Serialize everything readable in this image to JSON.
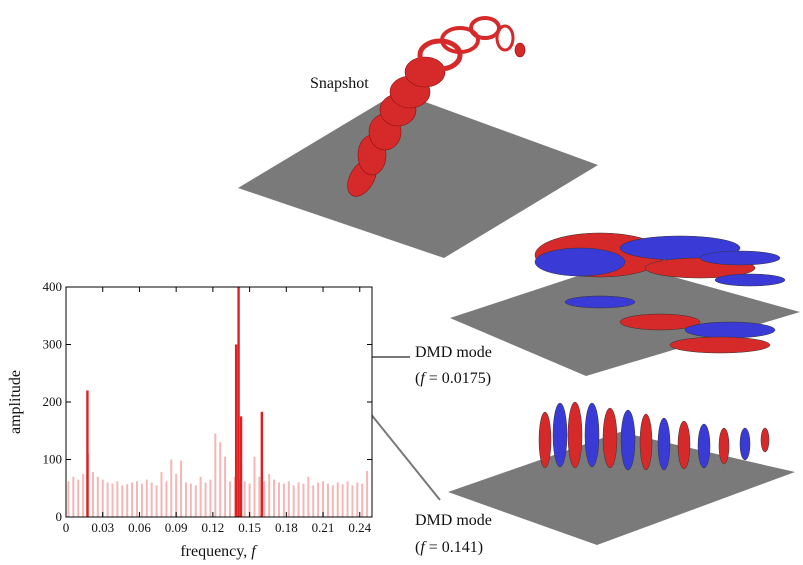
{
  "snapshot_label": "Snapshot",
  "annotations": [
    {
      "title": "DMD mode",
      "open": "(",
      "variable": "f",
      "rest": " = 0.0175)"
    },
    {
      "title": "DMD mode",
      "open": "(",
      "variable": "f",
      "rest": " = 0.141)"
    }
  ],
  "chart_data": {
    "type": "bar",
    "x_label": "frequency, ",
    "x_label_variable": "f",
    "y_label": "amplitude",
    "xlim": [
      0,
      0.25
    ],
    "xticks": [
      0,
      0.03,
      0.06,
      0.09,
      0.12,
      0.15,
      0.18,
      0.21,
      0.24
    ],
    "ylim": [
      0,
      400
    ],
    "yticks": [
      0,
      100,
      200,
      300,
      400
    ],
    "series": [
      {
        "color": "#f4b6b6",
        "x": [
          0.002,
          0.006,
          0.01,
          0.014,
          0.018,
          0.022,
          0.026,
          0.03,
          0.034,
          0.038,
          0.042,
          0.046,
          0.05,
          0.054,
          0.058,
          0.062,
          0.066,
          0.07,
          0.074,
          0.078,
          0.082,
          0.086,
          0.09,
          0.094,
          0.098,
          0.102,
          0.106,
          0.11,
          0.114,
          0.118,
          0.122,
          0.126,
          0.13,
          0.134,
          0.138,
          0.142,
          0.146,
          0.15,
          0.154,
          0.158,
          0.162,
          0.166,
          0.17,
          0.174,
          0.178,
          0.182,
          0.186,
          0.19,
          0.194,
          0.198,
          0.202,
          0.206,
          0.21,
          0.214,
          0.218,
          0.222,
          0.226,
          0.23,
          0.234,
          0.238,
          0.242,
          0.246
        ],
        "values": [
          62,
          70,
          65,
          75,
          110,
          78,
          70,
          65,
          60,
          58,
          62,
          55,
          57,
          60,
          62,
          58,
          65,
          60,
          55,
          78,
          62,
          100,
          75,
          98,
          60,
          58,
          55,
          70,
          60,
          65,
          145,
          130,
          105,
          62,
          70,
          65,
          62,
          58,
          105,
          70,
          62,
          75,
          65,
          60,
          58,
          62,
          55,
          60,
          58,
          70,
          55,
          60,
          62,
          58,
          55,
          60,
          57,
          62,
          55,
          60,
          58,
          80
        ]
      },
      {
        "color": "#e02020",
        "x": [
          0.0175,
          0.139,
          0.141,
          0.143,
          0.16
        ],
        "values": [
          220,
          300,
          400,
          175,
          183
        ]
      }
    ]
  }
}
